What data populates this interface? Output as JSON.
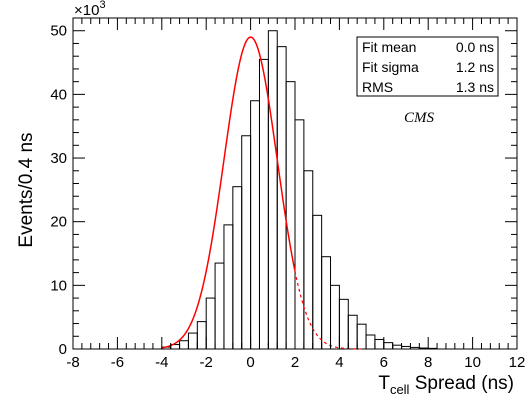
{
  "chart_data": {
    "type": "bar",
    "xlabel_main": "T",
    "xlabel_sub": "cell",
    "xlabel_rest": " Spread (ns)",
    "ylabel": "Events/0.4 ns",
    "y_multiplier_base": "×10",
    "y_multiplier_exp": "3",
    "xlim": [
      -8,
      12
    ],
    "ylim": [
      0,
      52
    ],
    "x_ticks": [
      -8,
      -6,
      -4,
      -2,
      0,
      2,
      4,
      6,
      8,
      10,
      12
    ],
    "y_ticks": [
      0,
      10,
      20,
      30,
      40,
      50
    ],
    "bin_width": 0.4,
    "histogram": {
      "bin_edges_start": -4.0,
      "values": [
        0.3,
        0.7,
        1.3,
        2.5,
        4.3,
        8.0,
        13.5,
        19.5,
        25.5,
        33.5,
        39.0,
        45.5,
        50.0,
        47.5,
        42.0,
        36.0,
        28.0,
        21.0,
        14.5,
        10.0,
        7.8,
        5.3,
        3.9,
        2.2,
        1.5,
        1.0,
        0.6,
        0.4,
        0.25,
        0.15,
        0.1
      ]
    },
    "fit": {
      "type": "gaussian",
      "amplitude": 49,
      "mean": 0.0,
      "sigma": 1.2,
      "solid_range": [
        -4,
        2
      ],
      "dashed_range": [
        2,
        5
      ],
      "color": "#ff0000"
    },
    "stats_box": [
      {
        "label": "Fit mean",
        "value": "0.0 ns"
      },
      {
        "label": "Fit sigma",
        "value": "1.2 ns"
      },
      {
        "label": "RMS",
        "value": "1.3 ns"
      }
    ],
    "annotation": "CMS"
  }
}
